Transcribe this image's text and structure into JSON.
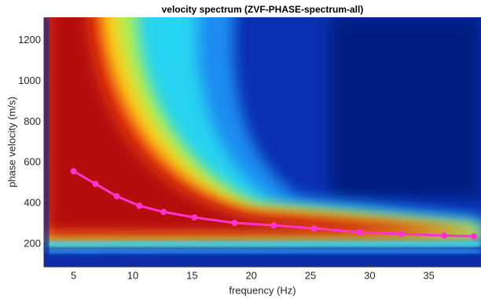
{
  "chart_data": {
    "type": "line",
    "title": "velocity spectrum (ZVF-PHASE-spectrum-all)",
    "x_label": "frequency (Hz)",
    "y_label": "phase velocity (m/s)",
    "x": [
      5,
      6.85,
      8.64,
      10.56,
      12.6,
      15.2,
      18.6,
      21.9,
      25.3,
      29.2,
      32.7,
      36.3,
      38.8
    ],
    "series": [
      {
        "color": "#ff33cc",
        "values": [
          558,
          496,
          435,
          388,
          358,
          331,
          304,
          292,
          277,
          258,
          250,
          242,
          238
        ]
      }
    ],
    "xlim": [
      2.5,
      39.4
    ],
    "xticks": [
      5,
      10,
      15,
      20,
      25,
      30,
      35
    ],
    "ylim": [
      88,
      1315
    ],
    "yticks": [
      200,
      400,
      600,
      800,
      1000,
      1200
    ]
  }
}
